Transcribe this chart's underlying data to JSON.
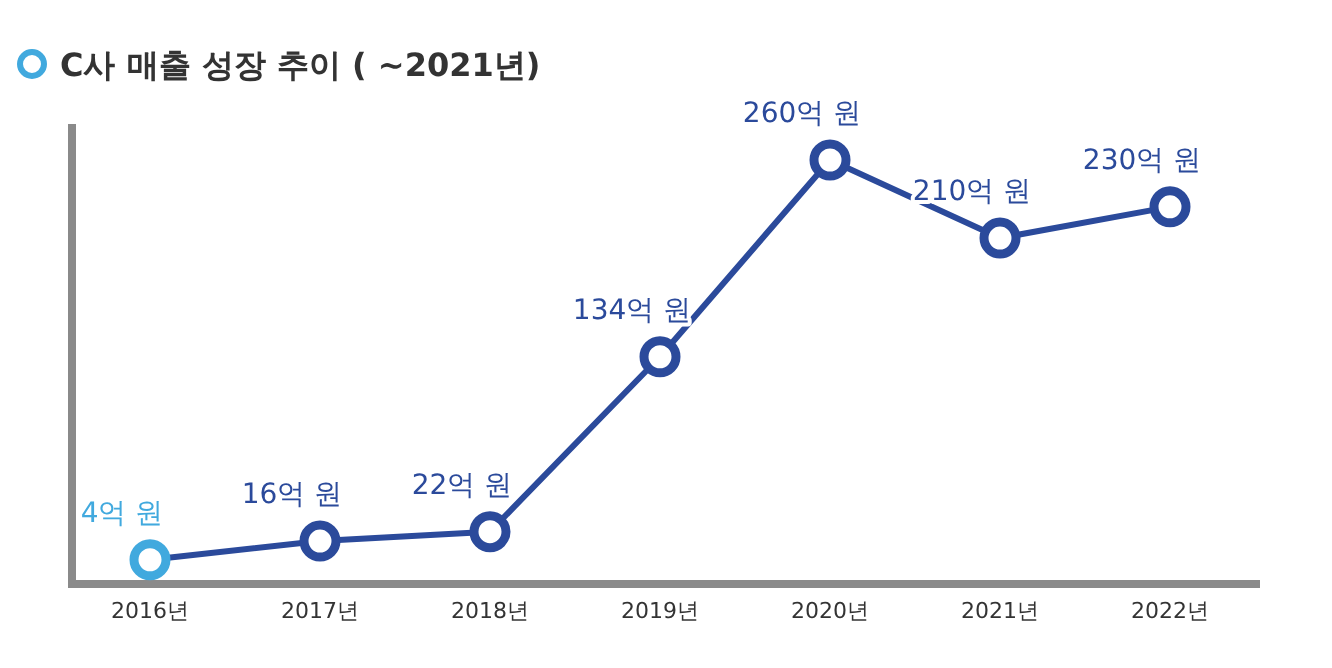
{
  "chart_data": {
    "type": "line",
    "title": "C사 매출 성장 추이 ( ~2021년)",
    "categories": [
      "2016년",
      "2017년",
      "2018년",
      "2019년",
      "2020년",
      "2021년",
      "2022년"
    ],
    "series": [
      {
        "color": "#2b4a9b",
        "colors": [
          "#41a9de",
          "#2b4a9b",
          "#2b4a9b",
          "#2b4a9b",
          "#2b4a9b",
          "#2b4a9b",
          "#2b4a9b"
        ],
        "values": [
          4,
          16,
          22,
          134,
          260,
          210,
          230
        ],
        "value_labels": [
          "4억 원",
          "16억 원",
          "22억 원",
          "134억 원",
          "260억 원",
          "210억 원",
          "230억 원"
        ]
      }
    ],
    "marker": "circle",
    "line_style": "solid"
  }
}
